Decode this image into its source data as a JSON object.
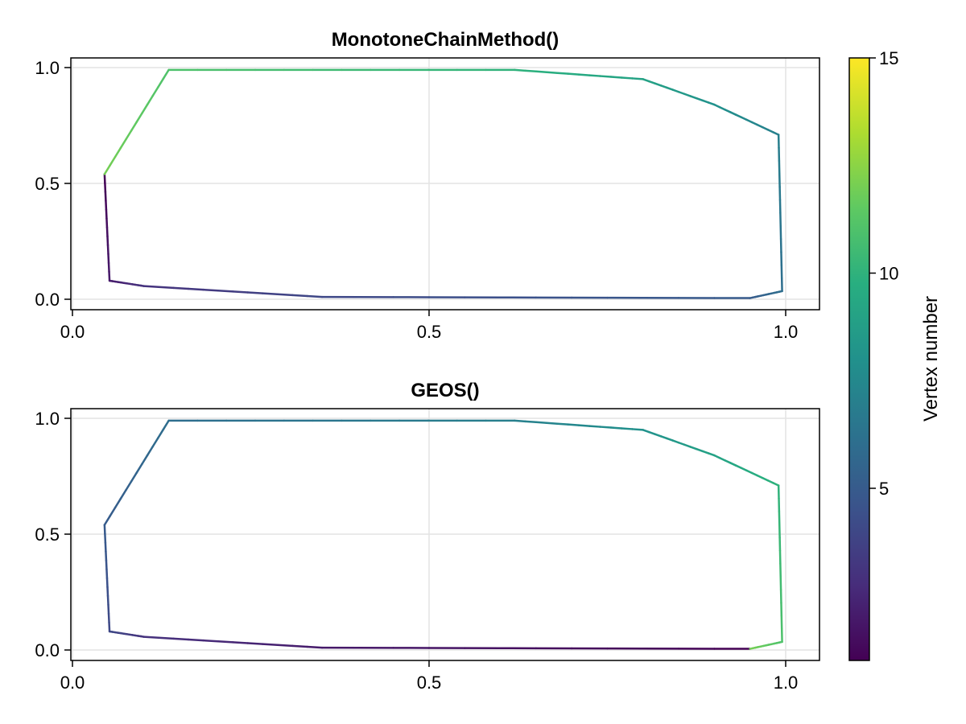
{
  "chart_data": [
    {
      "type": "line",
      "title": "MonotoneChainMethod()",
      "xlim": [
        0.0,
        1.0
      ],
      "ylim": [
        0.0,
        1.0
      ],
      "xticks": [
        "0.0",
        "0.5",
        "1.0"
      ],
      "yticks": [
        "0.0",
        "0.5",
        "1.0"
      ],
      "grid": true,
      "color_by": "vertex number",
      "vertices": [
        {
          "x": 0.045,
          "y": 0.54,
          "vertex": 1
        },
        {
          "x": 0.052,
          "y": 0.08,
          "vertex": 2
        },
        {
          "x": 0.1,
          "y": 0.057,
          "vertex": 3
        },
        {
          "x": 0.35,
          "y": 0.01,
          "vertex": 4
        },
        {
          "x": 0.95,
          "y": 0.005,
          "vertex": 5
        },
        {
          "x": 0.995,
          "y": 0.035,
          "vertex": 6
        },
        {
          "x": 0.99,
          "y": 0.71,
          "vertex": 7
        },
        {
          "x": 0.9,
          "y": 0.84,
          "vertex": 8
        },
        {
          "x": 0.8,
          "y": 0.95,
          "vertex": 9
        },
        {
          "x": 0.62,
          "y": 0.99,
          "vertex": 10
        },
        {
          "x": 0.135,
          "y": 0.99,
          "vertex": 11
        },
        {
          "x": 0.045,
          "y": 0.54,
          "vertex": 12
        }
      ]
    },
    {
      "type": "line",
      "title": "GEOS()",
      "xlim": [
        0.0,
        1.0
      ],
      "ylim": [
        0.0,
        1.0
      ],
      "xticks": [
        "0.0",
        "0.5",
        "1.0"
      ],
      "yticks": [
        "0.0",
        "0.5",
        "1.0"
      ],
      "grid": true,
      "color_by": "vertex number",
      "vertices": [
        {
          "x": 0.95,
          "y": 0.005,
          "vertex": 1
        },
        {
          "x": 0.35,
          "y": 0.01,
          "vertex": 2
        },
        {
          "x": 0.1,
          "y": 0.057,
          "vertex": 3
        },
        {
          "x": 0.052,
          "y": 0.08,
          "vertex": 4
        },
        {
          "x": 0.045,
          "y": 0.54,
          "vertex": 5
        },
        {
          "x": 0.135,
          "y": 0.99,
          "vertex": 6
        },
        {
          "x": 0.62,
          "y": 0.99,
          "vertex": 7
        },
        {
          "x": 0.8,
          "y": 0.95,
          "vertex": 8
        },
        {
          "x": 0.9,
          "y": 0.84,
          "vertex": 9
        },
        {
          "x": 0.99,
          "y": 0.71,
          "vertex": 10
        },
        {
          "x": 0.995,
          "y": 0.035,
          "vertex": 11
        },
        {
          "x": 0.95,
          "y": 0.005,
          "vertex": 12
        }
      ]
    }
  ],
  "colorbar": {
    "label": "Vertex number",
    "range": [
      1,
      15
    ],
    "ticks": [
      "5",
      "10",
      "15"
    ],
    "tick_values": [
      5,
      10,
      15
    ],
    "colormap": "viridis",
    "colormap_stops": [
      "#440154",
      "#472d7b",
      "#3b528b",
      "#2c728e",
      "#21918c",
      "#28ae80",
      "#5ec962",
      "#addc30",
      "#fde725"
    ]
  }
}
